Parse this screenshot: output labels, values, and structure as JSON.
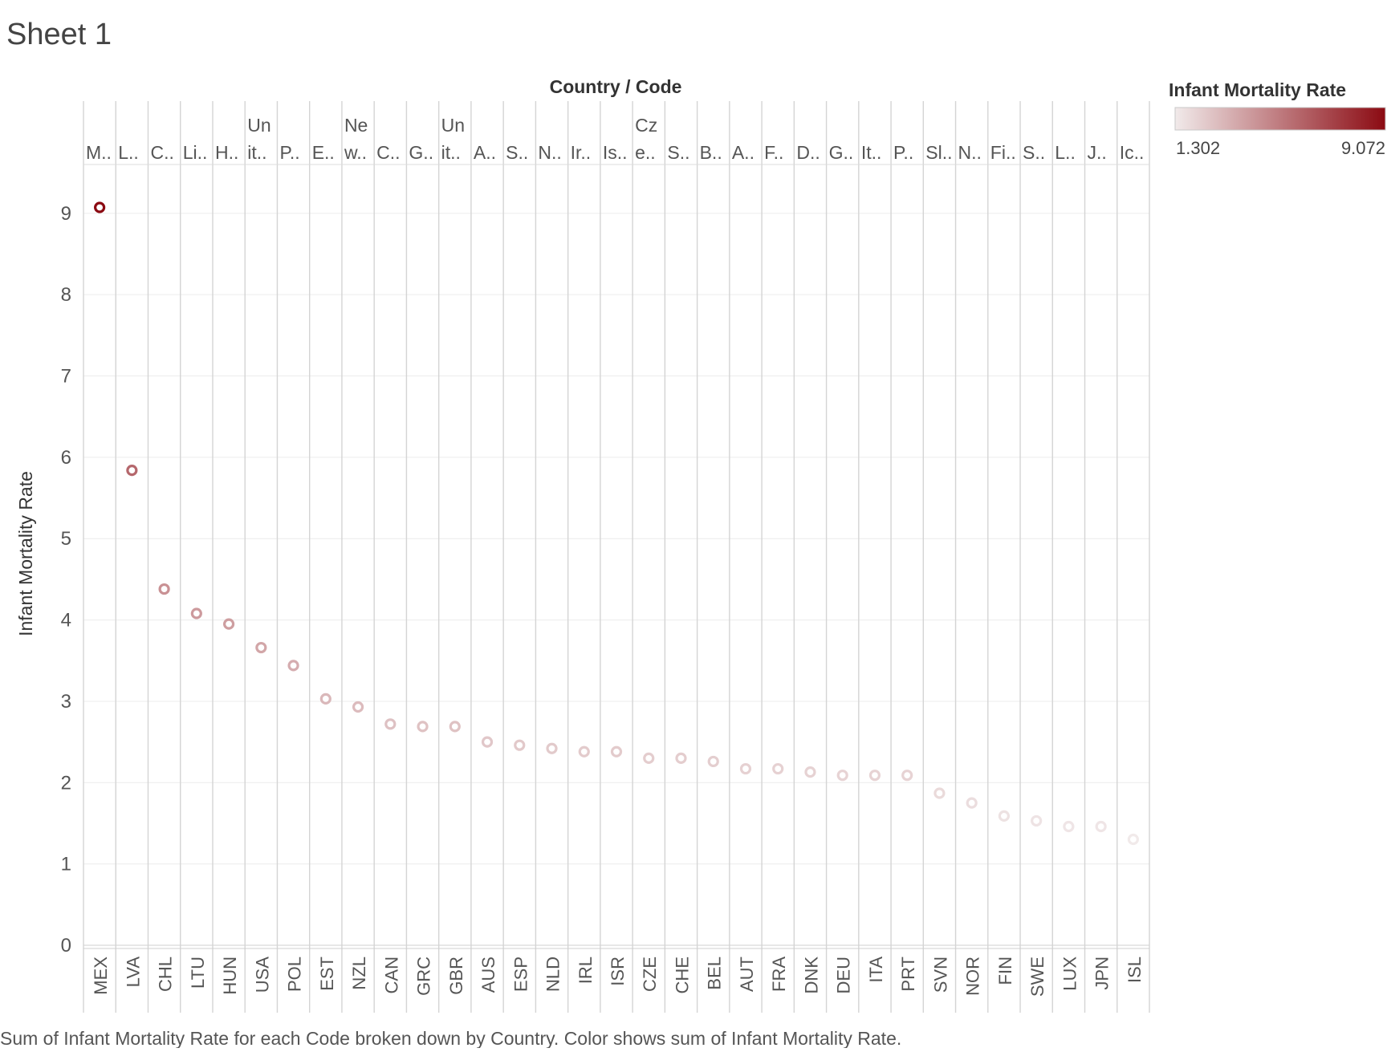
{
  "sheet_title": "Sheet 1",
  "caption": "Sum of Infant Mortality Rate for each Code broken down by Country.  Color shows sum of Infant Mortality Rate.",
  "legend": {
    "title": "Infant Mortality Rate",
    "min_label": "1.302",
    "max_label": "9.072",
    "color_low": "#f1eaea",
    "color_high": "#8b0a12"
  },
  "colors": {
    "grid": "#ececec",
    "column_divider": "#d4d4d4",
    "axis_text": "#555555"
  },
  "chart_data": {
    "type": "scatter",
    "title": "",
    "column_header": "Country / Code",
    "ylabel": "Infant Mortality Rate",
    "ylim": [
      0,
      9.6
    ],
    "yticks": [
      0,
      1,
      2,
      3,
      4,
      5,
      6,
      7,
      8,
      9
    ],
    "grid": true,
    "legend_position": "top-right",
    "country_labels": [
      [
        "M.."
      ],
      [
        "L.."
      ],
      [
        "C.."
      ],
      [
        "Li.."
      ],
      [
        "H.."
      ],
      [
        "Un",
        "it.."
      ],
      [
        "P.."
      ],
      [
        "E.."
      ],
      [
        "Ne",
        "w.."
      ],
      [
        "C.."
      ],
      [
        "G.."
      ],
      [
        "Un",
        "it.."
      ],
      [
        "A.."
      ],
      [
        "S.."
      ],
      [
        "N.."
      ],
      [
        "Ir.."
      ],
      [
        "Is.."
      ],
      [
        "Cz",
        "e.."
      ],
      [
        "S.."
      ],
      [
        "B.."
      ],
      [
        "A.."
      ],
      [
        "F.."
      ],
      [
        "D.."
      ],
      [
        "G.."
      ],
      [
        "It.."
      ],
      [
        "P.."
      ],
      [
        "Sl.."
      ],
      [
        "N.."
      ],
      [
        "Fi.."
      ],
      [
        "S.."
      ],
      [
        "L.."
      ],
      [
        "J.."
      ],
      [
        "Ic.."
      ]
    ],
    "codes": [
      "MEX",
      "LVA",
      "CHL",
      "LTU",
      "HUN",
      "USA",
      "POL",
      "EST",
      "NZL",
      "CAN",
      "GRC",
      "GBR",
      "AUS",
      "ESP",
      "NLD",
      "IRL",
      "ISR",
      "CZE",
      "CHE",
      "BEL",
      "AUT",
      "FRA",
      "DNK",
      "DEU",
      "ITA",
      "PRT",
      "SVN",
      "NOR",
      "FIN",
      "SWE",
      "LUX",
      "JPN",
      "ISL"
    ],
    "values": [
      9.072,
      5.84,
      4.38,
      4.08,
      3.95,
      3.66,
      3.44,
      3.03,
      2.93,
      2.72,
      2.69,
      2.69,
      2.5,
      2.46,
      2.42,
      2.38,
      2.38,
      2.3,
      2.3,
      2.26,
      2.17,
      2.17,
      2.13,
      2.09,
      2.09,
      2.09,
      1.87,
      1.75,
      1.59,
      1.53,
      1.46,
      1.46,
      1.302
    ],
    "color_range": [
      1.302,
      9.072
    ]
  }
}
